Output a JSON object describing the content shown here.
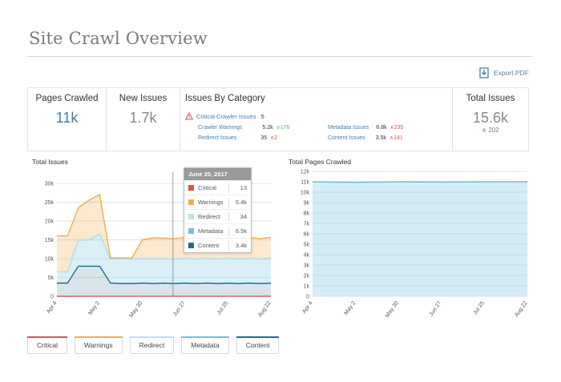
{
  "page": {
    "title": "Site Crawl Overview"
  },
  "export": {
    "label": "Export PDF",
    "icon": "download-pdf-icon"
  },
  "stats": {
    "pages_crawled": {
      "label": "Pages Crawled",
      "value": "11k"
    },
    "new_issues": {
      "label": "New Issues",
      "value": "1.7k"
    },
    "issues_by_category": {
      "label": "Issues By Category",
      "critical": {
        "name": "Critical Crawler Issues",
        "value": "5",
        "icon": "warning-triangle-icon"
      },
      "rows": [
        {
          "name": "Crawler Warnings",
          "value": "5.2k",
          "delta": "176",
          "direction": "down"
        },
        {
          "name": "Metadata Issues",
          "value": "6.8k",
          "delta": "235",
          "direction": "up"
        },
        {
          "name": "Redirect Issues",
          "value": "35",
          "delta": "2",
          "direction": "up"
        },
        {
          "name": "Content Issues",
          "value": "3.5k",
          "delta": "141",
          "direction": "up"
        }
      ]
    },
    "total_issues": {
      "label": "Total Issues",
      "value": "15.6k",
      "delta": "202",
      "direction": "up"
    }
  },
  "colors": {
    "critical": "#d9534f",
    "warnings": "#f0ad4e",
    "redirect": "#b9e2ef",
    "metadata": "#6fbfe0",
    "content": "#1f6f8b",
    "link": "#3f7fb3"
  },
  "charts": {
    "total_issues": {
      "title": "Total Issues"
    },
    "pages_crawled": {
      "title": "Total Pages Crawled"
    }
  },
  "tooltip": {
    "date": "June 20, 2017",
    "rows": [
      {
        "name": "Critical",
        "value": "13"
      },
      {
        "name": "Warnings",
        "value": "5.4k"
      },
      {
        "name": "Redirect",
        "value": "34"
      },
      {
        "name": "Metadata",
        "value": "6.5k"
      },
      {
        "name": "Content",
        "value": "3.4k"
      }
    ]
  },
  "legend": [
    "Critical",
    "Warnings",
    "Redirect",
    "Metadata",
    "Content"
  ],
  "chart_data": [
    {
      "type": "area",
      "title": "Total Issues",
      "x_tick_labels": [
        "Apr 4",
        "May 2",
        "May 30",
        "Jun 27",
        "Jul 25",
        "Aug 22"
      ],
      "y_ticks": [
        "0",
        "5k",
        "10k",
        "15k",
        "20k",
        "25k",
        "30k"
      ],
      "ylim": [
        0,
        33000
      ],
      "stacked": true,
      "x": [
        "Apr 4",
        "Apr 11",
        "Apr 18",
        "Apr 25",
        "May 2",
        "May 9",
        "May 16",
        "May 23",
        "May 30",
        "Jun 6",
        "Jun 13",
        "Jun 20",
        "Jun 27",
        "Jul 4",
        "Jul 11",
        "Jul 18",
        "Jul 25",
        "Aug 1",
        "Aug 8",
        "Aug 15",
        "Aug 22"
      ],
      "series": [
        {
          "name": "Critical",
          "values": [
            10,
            10,
            12,
            12,
            14,
            13,
            12,
            13,
            13,
            13,
            13,
            13,
            13,
            13,
            13,
            13,
            13,
            13,
            13,
            13,
            13
          ]
        },
        {
          "name": "Content",
          "values": [
            3500,
            3500,
            8000,
            8000,
            8000,
            3500,
            3400,
            3400,
            3500,
            3400,
            3500,
            3400,
            3500,
            3400,
            3500,
            3400,
            3500,
            3400,
            3500,
            3400,
            3500
          ]
        },
        {
          "name": "Metadata",
          "values": [
            3000,
            3000,
            7000,
            7000,
            8500,
            6500,
            6600,
            6500,
            6500,
            6600,
            6500,
            6500,
            6600,
            6500,
            6600,
            6500,
            6600,
            6500,
            6600,
            6500,
            6600
          ]
        },
        {
          "name": "Redirect",
          "values": [
            34,
            34,
            34,
            34,
            34,
            34,
            34,
            34,
            34,
            34,
            34,
            34,
            34,
            34,
            34,
            34,
            34,
            34,
            34,
            34,
            34
          ]
        },
        {
          "name": "Warnings",
          "values": [
            9500,
            9500,
            8500,
            10500,
            10500,
            200,
            200,
            200,
            5000,
            5500,
            5400,
            5400,
            5500,
            5400,
            5500,
            5400,
            5500,
            5400,
            5500,
            5400,
            5500
          ]
        }
      ],
      "grid": true
    },
    {
      "type": "area",
      "title": "Total Pages Crawled",
      "x_tick_labels": [
        "Apr 4",
        "May 2",
        "May 30",
        "Jun 27",
        "Jul 25",
        "Aug 22"
      ],
      "y_ticks": [
        "0",
        "1k",
        "2k",
        "3k",
        "4k",
        "5k",
        "6k",
        "7k",
        "8k",
        "9k",
        "10k",
        "11k",
        "12k"
      ],
      "ylim": [
        0,
        12000
      ],
      "x": [
        "Apr 4",
        "May 2",
        "May 30",
        "Jun 27",
        "Jul 25",
        "Aug 22"
      ],
      "series": [
        {
          "name": "Pages Crawled",
          "values": [
            11000,
            10950,
            11000,
            10980,
            11000,
            11000
          ]
        }
      ],
      "grid": true
    }
  ]
}
